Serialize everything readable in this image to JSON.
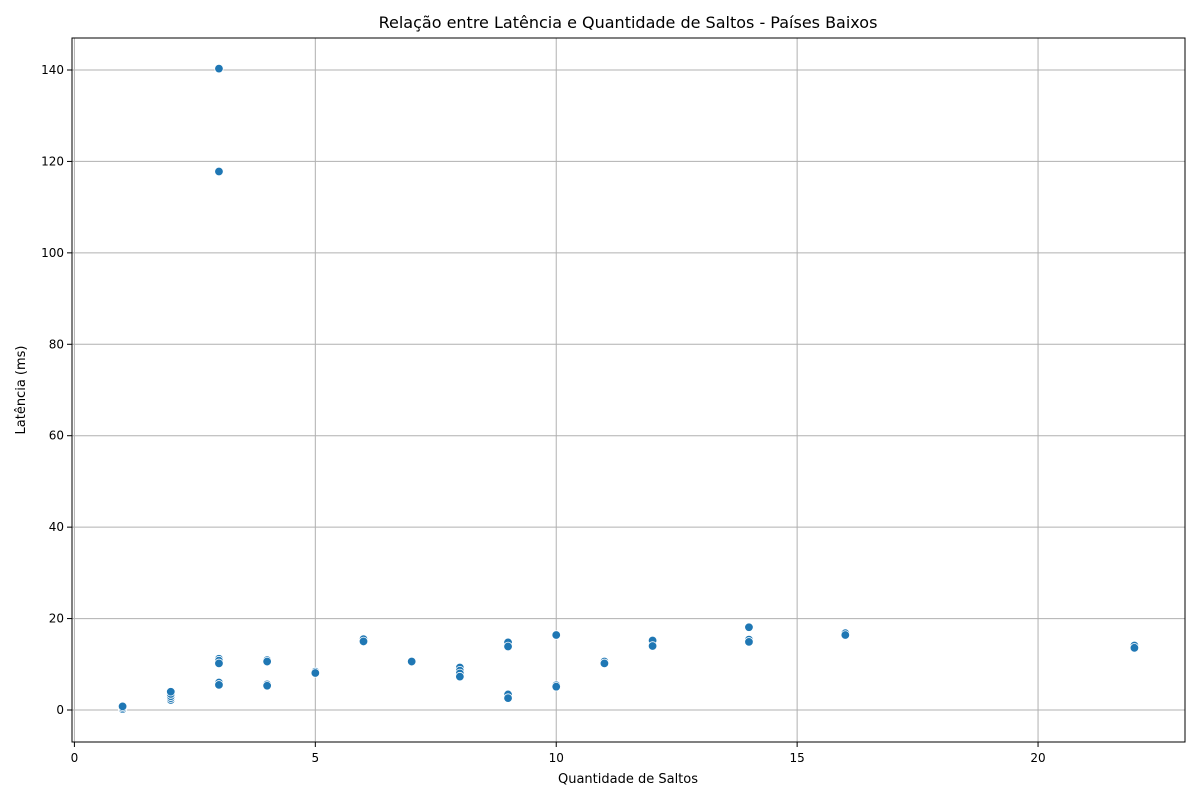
{
  "chart_data": {
    "type": "scatter",
    "title": "Relação entre Latência e Quantidade de Saltos - Países Baixos",
    "xlabel": "Quantidade de Saltos",
    "ylabel": "Latência (ms)",
    "xlim": [
      -0.05,
      23.05
    ],
    "ylim": [
      -7,
      147
    ],
    "xticks": [
      0,
      5,
      10,
      15,
      20
    ],
    "yticks": [
      0,
      20,
      40,
      60,
      80,
      100,
      120,
      140
    ],
    "grid": true,
    "marker_color": "#1f77b4",
    "marker_edge_color": "#ffffff",
    "points": [
      {
        "x": 1,
        "y": 0.2
      },
      {
        "x": 1,
        "y": 0.5
      },
      {
        "x": 1,
        "y": 0.8
      },
      {
        "x": 2,
        "y": 2.2
      },
      {
        "x": 2,
        "y": 2.6
      },
      {
        "x": 2,
        "y": 3.0
      },
      {
        "x": 2,
        "y": 3.5
      },
      {
        "x": 2,
        "y": 4.0
      },
      {
        "x": 3,
        "y": 140.3
      },
      {
        "x": 3,
        "y": 117.8
      },
      {
        "x": 3,
        "y": 11.2
      },
      {
        "x": 3,
        "y": 10.8
      },
      {
        "x": 3,
        "y": 10.2
      },
      {
        "x": 3,
        "y": 6.0
      },
      {
        "x": 3,
        "y": 5.5
      },
      {
        "x": 4,
        "y": 10.9
      },
      {
        "x": 4,
        "y": 10.6
      },
      {
        "x": 4,
        "y": 5.6
      },
      {
        "x": 4,
        "y": 5.3
      },
      {
        "x": 5,
        "y": 8.4
      },
      {
        "x": 5,
        "y": 8.1
      },
      {
        "x": 6,
        "y": 15.5
      },
      {
        "x": 6,
        "y": 15.0
      },
      {
        "x": 7,
        "y": 10.6
      },
      {
        "x": 8,
        "y": 9.3
      },
      {
        "x": 8,
        "y": 8.6
      },
      {
        "x": 8,
        "y": 8.0
      },
      {
        "x": 8,
        "y": 7.3
      },
      {
        "x": 9,
        "y": 14.8
      },
      {
        "x": 9,
        "y": 13.9
      },
      {
        "x": 9,
        "y": 3.4
      },
      {
        "x": 9,
        "y": 2.6
      },
      {
        "x": 10,
        "y": 16.4
      },
      {
        "x": 10,
        "y": 5.4
      },
      {
        "x": 10,
        "y": 5.1
      },
      {
        "x": 11,
        "y": 10.6
      },
      {
        "x": 11,
        "y": 10.2
      },
      {
        "x": 12,
        "y": 15.2
      },
      {
        "x": 12,
        "y": 14.0
      },
      {
        "x": 14,
        "y": 18.1
      },
      {
        "x": 14,
        "y": 15.4
      },
      {
        "x": 14,
        "y": 14.9
      },
      {
        "x": 16,
        "y": 16.8
      },
      {
        "x": 16,
        "y": 16.4
      },
      {
        "x": 22,
        "y": 14.1
      },
      {
        "x": 22,
        "y": 13.6
      }
    ]
  }
}
